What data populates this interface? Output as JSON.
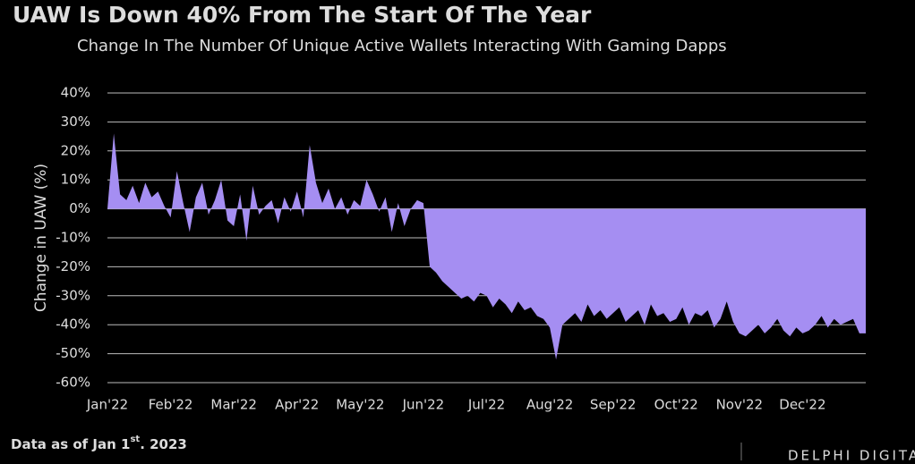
{
  "chart_data": {
    "type": "area",
    "title": "UAW Is Down 40% From The Start Of The Year",
    "subtitle": "Change In The Number Of Unique Active Wallets Interacting With Gaming Dapps",
    "y_label": "Change in UAW (%)",
    "categories": [
      "Jan'22",
      null,
      null,
      null,
      null,
      null,
      null,
      null,
      null,
      null,
      "Feb'22",
      null,
      null,
      null,
      null,
      null,
      null,
      null,
      null,
      null,
      "Mar'22",
      null,
      null,
      null,
      null,
      null,
      null,
      null,
      null,
      null,
      "Apr'22",
      null,
      null,
      null,
      null,
      null,
      null,
      null,
      null,
      null,
      "May'22",
      null,
      null,
      null,
      null,
      null,
      null,
      null,
      null,
      null,
      "Jun'22",
      null,
      null,
      null,
      null,
      null,
      null,
      null,
      null,
      null,
      "Jul'22",
      null,
      null,
      null,
      null,
      null,
      null,
      null,
      null,
      null,
      "Aug'22",
      null,
      null,
      null,
      null,
      null,
      null,
      null,
      null,
      null,
      "Sep'22",
      null,
      null,
      null,
      null,
      null,
      null,
      null,
      null,
      null,
      "Oct'22",
      null,
      null,
      null,
      null,
      null,
      null,
      null,
      null,
      null,
      "Nov'22",
      null,
      null,
      null,
      null,
      null,
      null,
      null,
      null,
      null,
      "Dec'22",
      null,
      null,
      null,
      null,
      null,
      null,
      null,
      null,
      null
    ],
    "values": [
      0,
      26,
      5,
      3,
      8,
      2,
      9,
      4,
      6,
      1,
      -3,
      13,
      2,
      -8,
      4,
      9,
      -2,
      3,
      10,
      -4,
      -6,
      5,
      -11,
      8,
      -2,
      1,
      3,
      -5,
      4,
      -1,
      6,
      -3,
      22,
      9,
      2,
      7,
      0,
      4,
      -2,
      3,
      1,
      10,
      5,
      -1,
      4,
      -8,
      2,
      -6,
      0,
      3,
      2,
      -20,
      -22,
      -25,
      -27,
      -29,
      -31,
      -30,
      -32,
      -29,
      -30,
      -34,
      -31,
      -33,
      -36,
      -32,
      -35,
      -34,
      -37,
      -38,
      -41,
      -52,
      -40,
      -38,
      -36,
      -39,
      -33,
      -37,
      -35,
      -38,
      -36,
      -34,
      -39,
      -37,
      -35,
      -40,
      -33,
      -37,
      -36,
      -39,
      -38,
      -34,
      -40,
      -36,
      -37,
      -35,
      -41,
      -38,
      -32,
      -39,
      -43,
      -44,
      -42,
      -40,
      -43,
      -41,
      -38,
      -42,
      -44,
      -41,
      -43,
      -42,
      -40,
      -37,
      -41,
      -38,
      -40,
      -39,
      -38,
      -43
    ],
    "color": "#a58ef2",
    "ylim": [
      -60,
      40
    ],
    "yticks": [
      {
        "value": 40,
        "label": "40%"
      },
      {
        "value": 30,
        "label": "30%"
      },
      {
        "value": 20,
        "label": "20%"
      },
      {
        "value": 10,
        "label": "10%"
      },
      {
        "value": 0,
        "label": "0%"
      },
      {
        "value": -10,
        "label": "-10%"
      },
      {
        "value": -20,
        "label": "-20%"
      },
      {
        "value": -30,
        "label": "-30%"
      },
      {
        "value": -40,
        "label": "-40%"
      },
      {
        "value": -50,
        "label": "-50%"
      },
      {
        "value": -60,
        "label": "-60%"
      }
    ],
    "grid": true,
    "footnote": [
      "Data as of Jan 1",
      "st",
      ". 2023"
    ],
    "brand": "DELPHI DIGITAL"
  }
}
